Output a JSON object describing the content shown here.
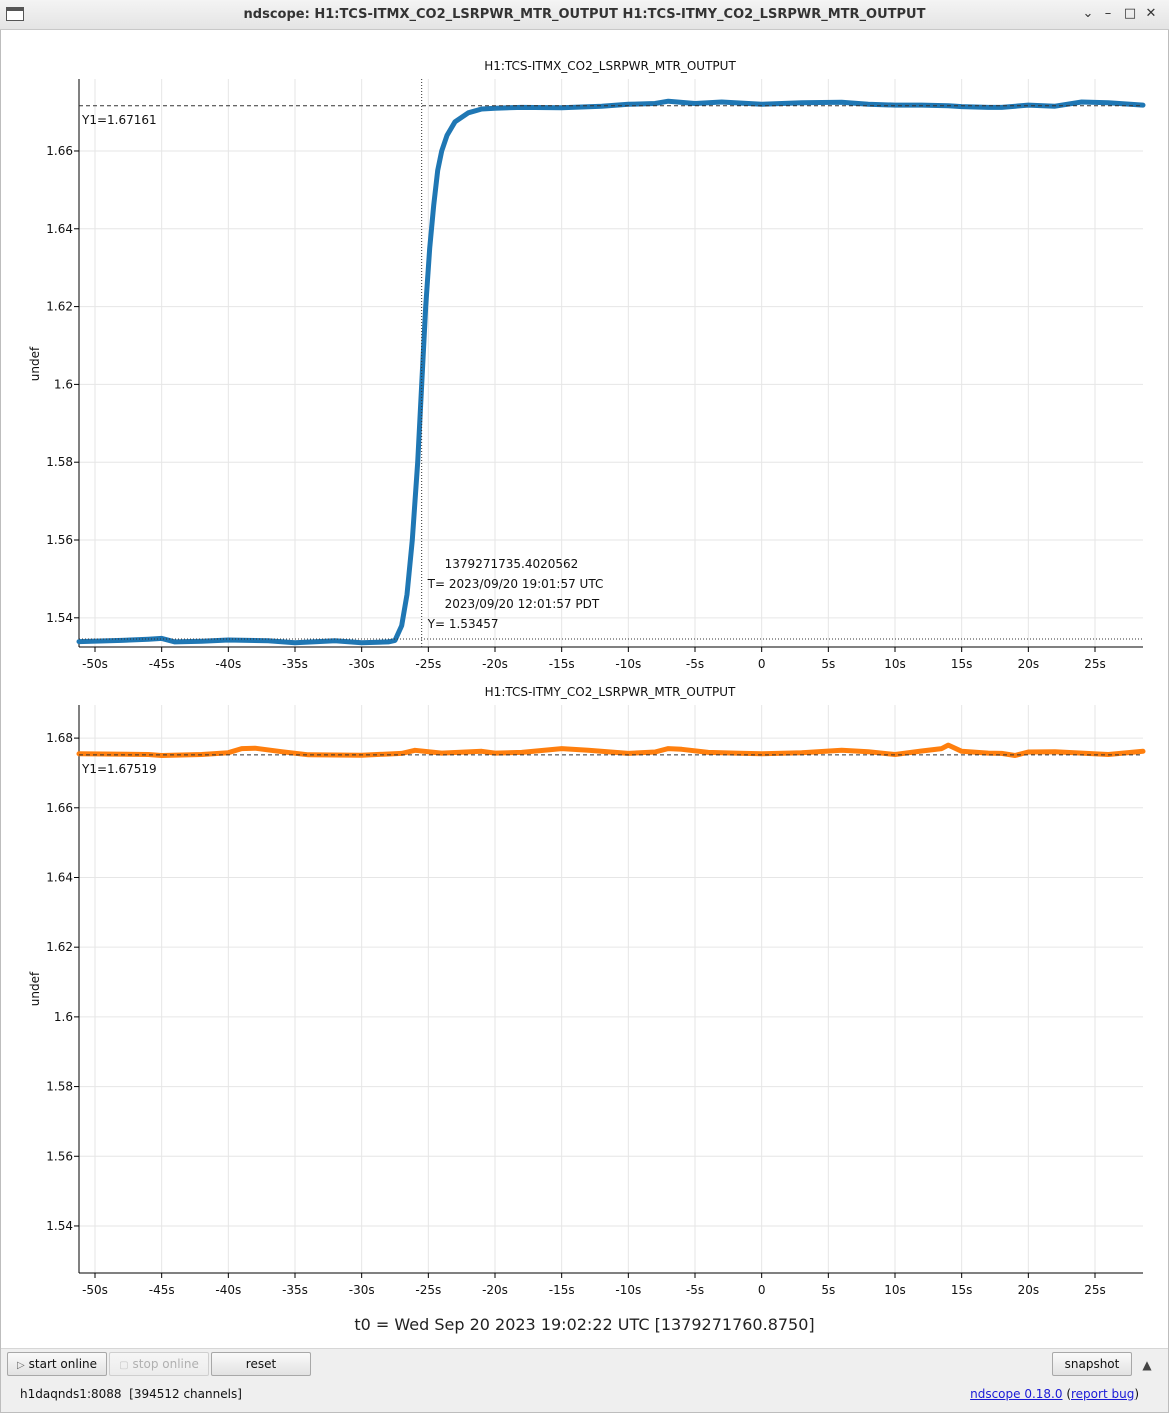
{
  "window": {
    "title": "ndscope: H1:TCS-ITMX_CO2_LSRPWR_MTR_OUTPUT H1:TCS-ITMY_CO2_LSRPWR_MTR_OUTPUT",
    "controls": [
      "chevron-down-icon",
      "minimize-icon",
      "maximize-icon",
      "close-icon"
    ]
  },
  "colors": {
    "itmx": "#1f77b4",
    "itmy": "#ff7f0e",
    "grid": "#e6e6e6",
    "axis": "#000000"
  },
  "chart_data": [
    {
      "type": "line",
      "title": "H1:TCS-ITMX_CO2_LSRPWR_MTR_OUTPUT",
      "xlabel": "",
      "ylabel": "undef",
      "xlim": [
        -51.2,
        28.6
      ],
      "ylim": [
        1.5325,
        1.6785
      ],
      "x_ticks": [
        -50,
        -45,
        -40,
        -35,
        -30,
        -25,
        -20,
        -15,
        -10,
        -5,
        0,
        5,
        10,
        15,
        20,
        25
      ],
      "x_tick_labels": [
        "-50s",
        "-45s",
        "-40s",
        "-35s",
        "-30s",
        "-25s",
        "-20s",
        "-15s",
        "-10s",
        "-5s",
        "0",
        "5s",
        "10s",
        "15s",
        "20s",
        "25s"
      ],
      "y_ticks": [
        1.54,
        1.56,
        1.58,
        1.6,
        1.62,
        1.64,
        1.66
      ],
      "y_tick_labels": [
        "1.54",
        "1.56",
        "1.58",
        "1.6",
        "1.62",
        "1.64",
        "1.66"
      ],
      "grid": true,
      "series": [
        {
          "x": [
            -51.2,
            -48,
            -46,
            -45,
            -44,
            -42,
            -40,
            -37,
            -35,
            -32,
            -30,
            -28,
            -27.5,
            -27,
            -26.6,
            -26.2,
            -25.8,
            -25.5,
            -25.2,
            -24.9,
            -24.6,
            -24.3,
            -24,
            -23.6,
            -23,
            -22,
            -21,
            -20,
            -18,
            -15,
            -12,
            -10,
            -8,
            -7,
            -5,
            -3,
            0,
            3,
            6,
            8,
            10,
            12,
            14,
            15,
            17,
            18,
            20,
            22,
            24,
            26,
            28.6
          ],
          "values": [
            1.5339,
            1.5342,
            1.5345,
            1.5347,
            1.5338,
            1.534,
            1.5343,
            1.5341,
            1.5336,
            1.5341,
            1.5336,
            1.5338,
            1.5342,
            1.538,
            1.546,
            1.56,
            1.58,
            1.6,
            1.62,
            1.635,
            1.646,
            1.655,
            1.66,
            1.664,
            1.6675,
            1.6698,
            1.6708,
            1.671,
            1.6712,
            1.6711,
            1.6715,
            1.672,
            1.6722,
            1.6728,
            1.6722,
            1.6726,
            1.672,
            1.6724,
            1.6725,
            1.672,
            1.6718,
            1.6718,
            1.6716,
            1.6714,
            1.6712,
            1.6712,
            1.6718,
            1.6715,
            1.6726,
            1.6724,
            1.6718
          ]
        }
      ],
      "cursor": {
        "y1_label": "Y1=1.67161",
        "y1_value": 1.67161,
        "t_value": -25.5,
        "gps": "1379271735.4020562",
        "t_utc": "T= 2023/09/20 19:01:57 UTC",
        "t_pdt": "2023/09/20 12:01:57 PDT",
        "y_label": "Y= 1.53457",
        "y_value": 1.53457
      }
    },
    {
      "type": "line",
      "title": "H1:TCS-ITMY_CO2_LSRPWR_MTR_OUTPUT",
      "xlabel": "",
      "ylabel": "undef",
      "xlim": [
        -51.2,
        28.6
      ],
      "ylim": [
        1.5265,
        1.6895
      ],
      "x_ticks": [
        -50,
        -45,
        -40,
        -35,
        -30,
        -25,
        -20,
        -15,
        -10,
        -5,
        0,
        5,
        10,
        15,
        20,
        25
      ],
      "x_tick_labels": [
        "-50s",
        "-45s",
        "-40s",
        "-35s",
        "-30s",
        "-25s",
        "-20s",
        "-15s",
        "-10s",
        "-5s",
        "0",
        "5s",
        "10s",
        "15s",
        "20s",
        "25s"
      ],
      "y_ticks": [
        1.54,
        1.56,
        1.58,
        1.6,
        1.62,
        1.64,
        1.66,
        1.68
      ],
      "y_tick_labels": [
        "1.54",
        "1.56",
        "1.58",
        "1.6",
        "1.62",
        "1.64",
        "1.66",
        "1.68"
      ],
      "grid": true,
      "series": [
        {
          "x": [
            -51.2,
            -46,
            -45,
            -42,
            -40,
            -39,
            -38,
            -36,
            -34,
            -30,
            -27,
            -26,
            -24,
            -21,
            -20,
            -18,
            -15,
            -13,
            -10,
            -8,
            -7,
            -6,
            -4,
            -2,
            0,
            3,
            6,
            8,
            10,
            12,
            13.5,
            14,
            15,
            17,
            18,
            19,
            20,
            22,
            24,
            26,
            28.6
          ],
          "values": [
            1.6755,
            1.6753,
            1.675,
            1.6753,
            1.6758,
            1.677,
            1.6771,
            1.6761,
            1.6752,
            1.6751,
            1.6756,
            1.6765,
            1.6757,
            1.6762,
            1.6757,
            1.6759,
            1.677,
            1.6765,
            1.6756,
            1.676,
            1.677,
            1.6768,
            1.6759,
            1.6757,
            1.6755,
            1.6758,
            1.6765,
            1.6761,
            1.6753,
            1.6763,
            1.677,
            1.678,
            1.6762,
            1.6757,
            1.6756,
            1.675,
            1.676,
            1.6761,
            1.6757,
            1.6753,
            1.6762
          ]
        }
      ],
      "cursor": {
        "y1_label": "Y1=1.67519",
        "y1_value": 1.67519
      }
    }
  ],
  "t0_text": "t0 = Wed Sep 20 2023 19:02:22 UTC [1379271760.8750]",
  "toolbar": {
    "start_online_label": "start online",
    "stop_online_label": "stop online",
    "reset_label": "reset",
    "snapshot_label": "snapshot"
  },
  "status": {
    "server": "h1daqnds1:8088  [394512 channels]",
    "version_link": "ndscope 0.18.0",
    "report_bug_link": "report bug"
  }
}
